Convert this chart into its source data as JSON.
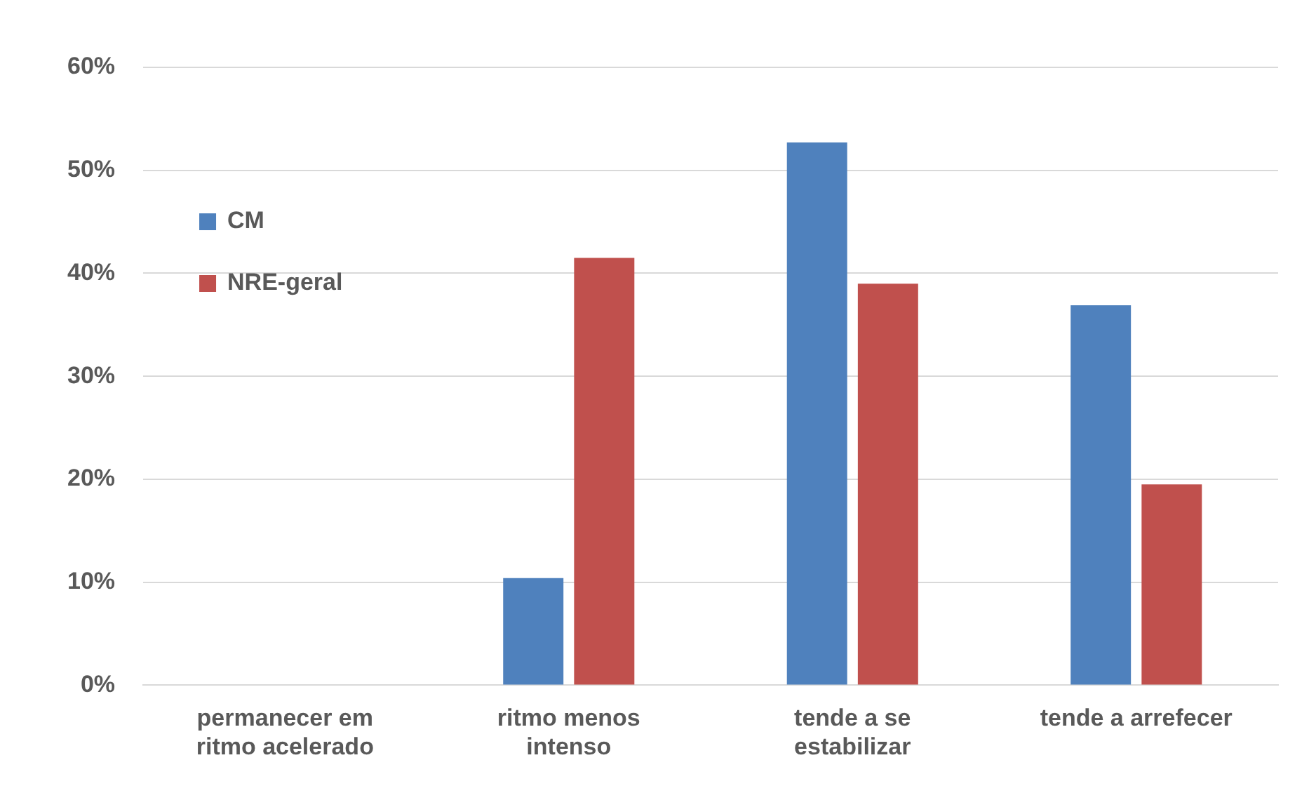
{
  "chart_data": {
    "type": "bar",
    "categories": [
      "permanecer em ritmo acelerado",
      "ritmo menos intenso",
      "tende a se estabilizar",
      "tende a arrefecer"
    ],
    "series": [
      {
        "name": "CM",
        "color": "#4f81bd",
        "values": [
          0,
          10.4,
          52.7,
          36.9
        ]
      },
      {
        "name": "NRE-geral",
        "color": "#c0504d",
        "values": [
          0,
          41.5,
          39.0,
          19.5
        ]
      }
    ],
    "ylim": [
      0,
      60
    ],
    "yticks": [
      {
        "value": 0,
        "label": "0%"
      },
      {
        "value": 10,
        "label": "10%"
      },
      {
        "value": 20,
        "label": "20%"
      },
      {
        "value": 30,
        "label": "30%"
      },
      {
        "value": 40,
        "label": "40%"
      },
      {
        "value": 50,
        "label": "50%"
      },
      {
        "value": 60,
        "label": "60%"
      }
    ],
    "grid": "y",
    "legend": "top left"
  }
}
